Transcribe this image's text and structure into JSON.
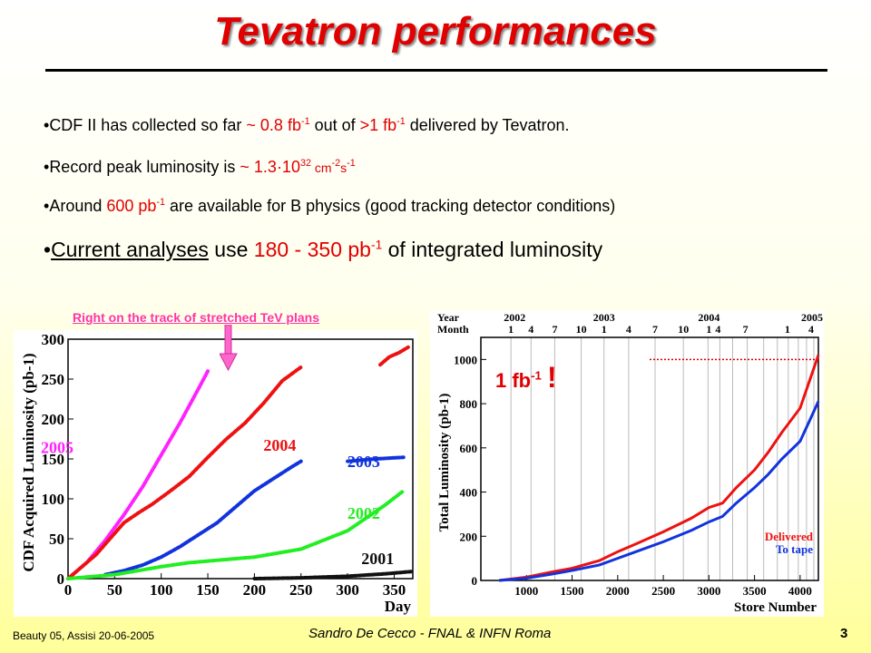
{
  "title": "Tevatron performances",
  "bullets": {
    "b1": {
      "pre": "CDF II has collected so far ",
      "v1": "~ 0.8 fb",
      "sup1": "-1",
      "mid": " out of ",
      "v2": ">1 fb",
      "sup2": "-1",
      "post": " delivered by Tevatron."
    },
    "b2": {
      "pre": "Record peak luminosity is ",
      "v1": "~ 1.3·10",
      "sup1": "32",
      "unit": " cm",
      "sup2": "-2",
      "unit2": "s",
      "sup3": "-1"
    },
    "b3": {
      "pre": "Around ",
      "v1": "600 pb",
      "sup1": "-1",
      "post": " are available for B physics (good tracking detector conditions)"
    },
    "b4": {
      "u": "Current analyses",
      "pre": " use ",
      "v1": "180 - 350 pb",
      "sup1": "-1",
      "post": " of integrated luminosity"
    }
  },
  "note": "Right on the track of stretched TeV plans",
  "annotation": {
    "text": "1 fb",
    "sup": "-1",
    "bang": "!"
  },
  "footer": {
    "left": "Beauty 05, Assisi 20-06-2005",
    "center": "Sandro De Cecco - FNAL & INFN Roma",
    "page": "3"
  },
  "colors": {
    "title": "#e00000",
    "accent": "#e00000",
    "pink": "#ff33aa"
  },
  "chart_data": [
    {
      "type": "scatter",
      "xlabel": "Day",
      "ylabel": "CDF Acquired Luminosity (pb-1)",
      "xlim": [
        0,
        370
      ],
      "ylim": [
        0,
        300
      ],
      "xticks": [
        0,
        50,
        100,
        150,
        200,
        250,
        300,
        350
      ],
      "yticks": [
        0,
        50,
        100,
        150,
        200,
        250,
        300
      ],
      "series": [
        {
          "name": "2005",
          "color": "#ff22ff",
          "x": [
            0,
            20,
            40,
            60,
            80,
            100,
            120,
            140,
            150
          ],
          "y": [
            0,
            20,
            48,
            80,
            115,
            155,
            195,
            238,
            260
          ]
        },
        {
          "name": "2004",
          "color": "#ee1111",
          "x": [
            0,
            30,
            60,
            75,
            90,
            110,
            130,
            150,
            170,
            190,
            210,
            230,
            250
          ],
          "y": [
            0,
            30,
            70,
            82,
            93,
            110,
            128,
            152,
            175,
            195,
            220,
            248,
            265
          ]
        },
        {
          "name": "2004",
          "color": "#ee1111",
          "x": [
            335,
            345,
            355,
            365
          ],
          "y": [
            268,
            278,
            283,
            290
          ]
        },
        {
          "name": "2003",
          "color": "#1133dd",
          "x": [
            40,
            60,
            80,
            100,
            120,
            140,
            160,
            180,
            200,
            220,
            240,
            250
          ],
          "y": [
            5,
            10,
            17,
            27,
            40,
            55,
            70,
            90,
            110,
            125,
            140,
            147
          ]
        },
        {
          "name": "2003",
          "color": "#1133dd",
          "x": [
            300,
            330,
            360
          ],
          "y": [
            147,
            150,
            152
          ]
        },
        {
          "name": "2002",
          "color": "#22ee22",
          "x": [
            0,
            50,
            100,
            130,
            150,
            200,
            250,
            300,
            340,
            360
          ],
          "y": [
            0,
            5,
            15,
            20,
            22,
            27,
            37,
            60,
            92,
            110
          ]
        },
        {
          "name": "2001",
          "color": "#111111",
          "x": [
            200,
            250,
            300,
            340,
            370
          ],
          "y": [
            0,
            1,
            3,
            6,
            9
          ]
        }
      ]
    },
    {
      "type": "line",
      "xlabel": "Store Number",
      "ylabel": "Total Luminosity (pb-1)",
      "xlim": [
        500,
        4200
      ],
      "ylim": [
        0,
        1100
      ],
      "xticks": [
        1000,
        1500,
        2000,
        2500,
        3000,
        3500,
        4000
      ],
      "yticks": [
        0,
        200,
        400,
        600,
        800,
        1000
      ],
      "top_axis": {
        "year_label": "Year",
        "month_label": "Month",
        "years": [
          "2002",
          "2003",
          "2004",
          "2005"
        ],
        "months": [
          "1",
          "4",
          "7",
          "10",
          "1",
          "4",
          "7",
          "10",
          "1",
          "4",
          "7",
          "1",
          "4"
        ]
      },
      "reference_line": 1000,
      "series": [
        {
          "name": "Delivered",
          "color": "#ee1111",
          "x": [
            700,
            1000,
            1300,
            1500,
            1800,
            2000,
            2200,
            2500,
            2800,
            3000,
            3150,
            3300,
            3500,
            3650,
            3800,
            4000,
            4100,
            4200
          ],
          "y": [
            0,
            15,
            40,
            55,
            90,
            130,
            165,
            220,
            280,
            330,
            350,
            420,
            500,
            580,
            670,
            780,
            900,
            1020
          ]
        },
        {
          "name": "To tape",
          "color": "#1133dd",
          "x": [
            700,
            1000,
            1300,
            1500,
            1800,
            2000,
            2200,
            2500,
            2800,
            3000,
            3150,
            3300,
            3500,
            3650,
            3800,
            4000,
            4100,
            4200
          ],
          "y": [
            0,
            10,
            30,
            45,
            70,
            100,
            130,
            175,
            225,
            265,
            290,
            350,
            420,
            480,
            550,
            630,
            720,
            810
          ]
        }
      ]
    }
  ]
}
